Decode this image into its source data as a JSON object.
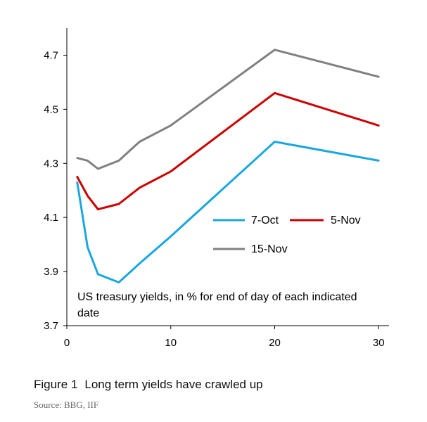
{
  "chart_data": {
    "type": "line",
    "title": "",
    "xlabel": "",
    "ylabel": "",
    "xlim": [
      0,
      31
    ],
    "ylim": [
      3.7,
      4.8
    ],
    "xticks": [
      0,
      10,
      20,
      30
    ],
    "xtick_labels": [
      "0",
      "10",
      "20",
      "30"
    ],
    "yticks": [
      3.7,
      3.9,
      4.1,
      4.3,
      4.5,
      4.7
    ],
    "ytick_labels": [
      "3.7",
      "3.9",
      "4.1",
      "4.3",
      "4.5",
      "4.7"
    ],
    "grid": false,
    "legend_position": "center-right",
    "annotation": [
      "US treasury yields, in % for end of day of each indicated",
      "date"
    ],
    "series": [
      {
        "name": "7-Oct",
        "color": "#1aa7e0",
        "x": [
          1,
          2,
          3,
          5,
          7,
          10,
          20,
          30
        ],
        "values": [
          4.23,
          3.99,
          3.89,
          3.86,
          3.93,
          4.03,
          4.38,
          4.31
        ]
      },
      {
        "name": "5-Nov",
        "color": "#cc0000",
        "x": [
          1,
          2,
          3,
          5,
          7,
          10,
          20,
          30
        ],
        "values": [
          4.25,
          4.18,
          4.13,
          4.15,
          4.21,
          4.27,
          4.56,
          4.44
        ]
      },
      {
        "name": "15-Nov",
        "color": "#808080",
        "x": [
          1,
          2,
          3,
          5,
          7,
          10,
          20,
          30
        ],
        "values": [
          4.32,
          4.31,
          4.28,
          4.31,
          4.38,
          4.44,
          4.72,
          4.62
        ]
      }
    ]
  },
  "caption": {
    "figure_number": "Figure 1",
    "text": "Long term yields have crawled up"
  },
  "source": "Source: BBG, IIF"
}
